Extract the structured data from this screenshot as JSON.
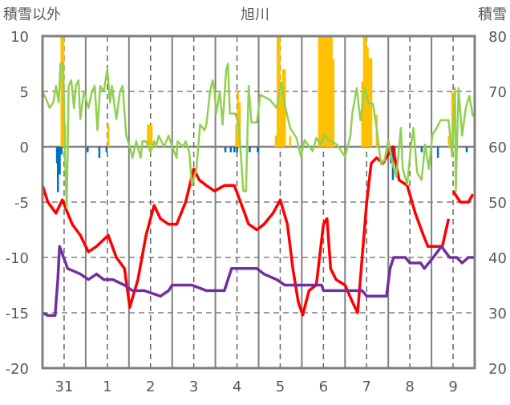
{
  "chart_data": {
    "type": "line",
    "title": "旭川",
    "ylabel_left": "積雪以外",
    "ylabel_right": "積雪",
    "ylim_left": [
      -20,
      10
    ],
    "ylim_right": [
      20,
      80
    ],
    "yticks_left": [
      "10",
      "5",
      "0",
      "-5",
      "-10",
      "-15",
      "-20"
    ],
    "yticks_right": [
      "80",
      "70",
      "60",
      "50",
      "40",
      "30",
      "20"
    ],
    "x_unit": "hours from start (10 days, hourly)",
    "xlim": [
      0,
      240
    ],
    "xtick_labels": [
      "31",
      "1",
      "2",
      "3",
      "4",
      "5",
      "6",
      "7",
      "8",
      "9"
    ],
    "grid": true,
    "colors": {
      "temp": "#ff0000",
      "green": "#92d050",
      "snow": "#7030a0",
      "bar_pos": "#ffc000",
      "bar_neg": "#0070c0",
      "axis": "#808080"
    },
    "series": [
      {
        "name": "red-line",
        "axis": "left",
        "points": [
          [
            0,
            -3.5
          ],
          [
            3,
            -5
          ],
          [
            7.5,
            -6
          ],
          [
            11,
            -4.8
          ],
          [
            14,
            -6
          ],
          [
            16.5,
            -7
          ],
          [
            21,
            -8
          ],
          [
            25.5,
            -9.5
          ],
          [
            30,
            -9
          ],
          [
            36.5,
            -8
          ],
          [
            41,
            -10
          ],
          [
            45.5,
            -11
          ],
          [
            48.5,
            -14.5
          ],
          [
            53,
            -12
          ],
          [
            57.5,
            -8
          ],
          [
            62,
            -5.3
          ],
          [
            65.5,
            -6.5
          ],
          [
            70,
            -7
          ],
          [
            74.5,
            -7
          ],
          [
            79.5,
            -5
          ],
          [
            84,
            -2
          ],
          [
            87,
            -3
          ],
          [
            91,
            -3.5
          ],
          [
            95.5,
            -4
          ],
          [
            101,
            -3.5
          ],
          [
            106.5,
            -3.5
          ],
          [
            110,
            -5
          ],
          [
            114.5,
            -7
          ],
          [
            119,
            -7.5
          ],
          [
            123,
            -7
          ],
          [
            128,
            -6
          ],
          [
            132,
            -4.8
          ],
          [
            136,
            -7
          ],
          [
            139,
            -11
          ],
          [
            142,
            -14
          ],
          [
            144.5,
            -15.2
          ],
          [
            148,
            -13
          ],
          [
            152,
            -12.5
          ],
          [
            156,
            -7
          ],
          [
            158,
            -6.5
          ],
          [
            160,
            -11
          ],
          [
            163,
            -12
          ],
          [
            168,
            -12.5
          ],
          [
            172,
            -14
          ],
          [
            175,
            -15
          ],
          [
            177.5,
            -10
          ],
          [
            180,
            -5
          ],
          [
            182.5,
            -1.5
          ],
          [
            185.5,
            -1
          ],
          [
            189,
            -1.5
          ],
          [
            194.5,
            0
          ],
          [
            198,
            -3
          ],
          [
            202.5,
            -3.5
          ],
          [
            207,
            -6
          ],
          [
            211.5,
            -8
          ],
          [
            214,
            -9
          ],
          [
            219,
            -9
          ],
          [
            222,
            -9
          ],
          [
            225.5,
            -6.5
          ],
          null,
          [
            228,
            -4
          ],
          [
            232,
            -5
          ],
          [
            236.5,
            -5
          ],
          [
            239,
            -4.3
          ]
        ]
      },
      {
        "name": "green-line",
        "axis": "left",
        "points": [
          [
            0,
            5
          ],
          [
            2,
            4.3
          ],
          [
            4,
            3.5
          ],
          [
            6,
            4
          ],
          [
            7.5,
            5.5
          ],
          [
            9,
            4
          ],
          [
            10,
            7.5
          ],
          [
            11.5,
            7.5
          ],
          [
            12.5,
            -1
          ],
          [
            13.5,
            -5.5
          ],
          [
            14.5,
            5.5
          ],
          [
            16,
            6
          ],
          [
            17.5,
            3.5
          ],
          [
            18.5,
            5.5
          ],
          [
            20,
            6
          ],
          [
            21,
            2.5
          ],
          [
            23,
            5
          ],
          [
            25.5,
            3.5
          ],
          [
            27.5,
            5
          ],
          [
            29,
            5.5
          ],
          [
            30.5,
            1.5
          ],
          [
            32,
            5.5
          ],
          [
            34,
            5
          ],
          [
            36,
            7
          ],
          [
            37.5,
            4
          ],
          [
            38.5,
            5.5
          ],
          [
            41,
            2.5
          ],
          [
            43,
            5
          ],
          [
            44.5,
            5.5
          ],
          [
            46.5,
            1
          ],
          [
            48.5,
            0
          ],
          [
            50,
            -1
          ],
          [
            52,
            0.5
          ],
          [
            54.5,
            -1
          ],
          [
            55.5,
            0.5
          ],
          [
            57.5,
            0.5
          ],
          [
            60,
            -0.5
          ],
          [
            62,
            0.5
          ],
          [
            63,
            0
          ],
          [
            64.5,
            1
          ],
          [
            67.5,
            0
          ],
          [
            70,
            1
          ],
          [
            72,
            0
          ],
          [
            74.5,
            -1
          ],
          [
            75,
            0.5
          ],
          [
            78,
            0
          ],
          [
            79.5,
            0.5
          ],
          [
            81.5,
            -0.5
          ],
          [
            83,
            -3.5
          ],
          [
            85.5,
            -2
          ],
          [
            87.5,
            2
          ],
          [
            90,
            1.5
          ],
          [
            91,
            2
          ],
          [
            93,
            5
          ],
          [
            94.5,
            6
          ],
          [
            95.5,
            5
          ],
          [
            96.5,
            3
          ],
          [
            98.5,
            5
          ],
          [
            100,
            2
          ],
          [
            102,
            7
          ],
          [
            103,
            7.5
          ],
          [
            104,
            3
          ],
          [
            107,
            3
          ],
          [
            109,
            2
          ],
          [
            111.5,
            -4
          ],
          [
            113,
            -4
          ],
          [
            114.5,
            5.5
          ],
          [
            116,
            2.2
          ],
          [
            119,
            2.2
          ],
          [
            121,
            4.7
          ],
          [
            126.5,
            4.2
          ],
          [
            130,
            3.5
          ],
          [
            132.5,
            5.8
          ],
          [
            134.5,
            3.8
          ],
          [
            137.5,
            1.7
          ],
          [
            141,
            0.8
          ],
          [
            143.5,
            -0.9
          ],
          [
            145.5,
            0.6
          ],
          [
            150,
            -0.4
          ],
          [
            152,
            0.8
          ],
          [
            154.5,
            0.2
          ],
          [
            156.5,
            1.1
          ],
          [
            159,
            0.6
          ],
          [
            163.5,
            0.2
          ],
          [
            168,
            -0.9
          ],
          [
            171,
            1
          ],
          [
            172,
            3
          ],
          [
            174.5,
            5.3
          ],
          [
            176.5,
            2.4
          ],
          [
            179,
            5.3
          ],
          [
            181,
            3.9
          ],
          [
            183.5,
            3.9
          ],
          [
            185.5,
            1.7
          ],
          [
            188,
            -1.6
          ],
          [
            190,
            -1.2
          ],
          [
            192,
            0.6
          ],
          [
            194.5,
            -1.6
          ],
          [
            196.5,
            -2.7
          ],
          [
            199,
            1.7
          ],
          [
            200,
            -2
          ],
          [
            202.5,
            -3.4
          ],
          [
            204.5,
            -0.1
          ],
          [
            206,
            1.7
          ],
          [
            208,
            -2.3
          ],
          [
            210.5,
            -3
          ],
          [
            212.5,
            0.2
          ],
          [
            214.5,
            -2
          ],
          [
            216.5,
            1.1
          ],
          [
            219,
            1.7
          ],
          [
            221,
            2.4
          ],
          [
            223.5,
            2.4
          ],
          [
            225.5,
            2.4
          ],
          [
            227.5,
            -0.9
          ],
          [
            229,
            5.3
          ],
          [
            229.5,
            -4
          ],
          [
            231,
            5.3
          ],
          [
            233,
            1
          ],
          [
            235,
            3.5
          ],
          [
            237,
            4.6
          ],
          [
            239,
            2.7
          ]
        ]
      },
      {
        "name": "snow-depth-line",
        "axis": "right",
        "points": [
          [
            0,
            30
          ],
          [
            3,
            29.5
          ],
          [
            7,
            29.5
          ],
          [
            8.5,
            36
          ],
          [
            9.5,
            42
          ],
          [
            14,
            38
          ],
          [
            21,
            37
          ],
          [
            25.5,
            36
          ],
          [
            30,
            37
          ],
          [
            34,
            36
          ],
          [
            39,
            36
          ],
          [
            45.5,
            35
          ],
          [
            50,
            34
          ],
          [
            56.5,
            34
          ],
          [
            65.5,
            33
          ],
          [
            70,
            34
          ],
          [
            72,
            35
          ],
          [
            83,
            35
          ],
          [
            91,
            34
          ],
          [
            101,
            34
          ],
          [
            105,
            38
          ],
          [
            110,
            38
          ],
          [
            119,
            38
          ],
          [
            123,
            37
          ],
          [
            130,
            36
          ],
          [
            134.5,
            35
          ],
          [
            155,
            35
          ],
          [
            156,
            34
          ],
          [
            177.5,
            34
          ],
          [
            180,
            33
          ],
          [
            191,
            33
          ],
          [
            193,
            38
          ],
          [
            195,
            40
          ],
          [
            201.5,
            40
          ],
          [
            204,
            39
          ],
          [
            210,
            39
          ],
          [
            212,
            38
          ],
          [
            217,
            40
          ],
          [
            221.5,
            42
          ],
          [
            226,
            40
          ],
          [
            230,
            40
          ],
          [
            233,
            39
          ],
          [
            236.5,
            40
          ],
          [
            240,
            40
          ]
        ]
      }
    ],
    "bars_positive": [
      [
        10,
        10
      ],
      [
        11,
        10
      ],
      [
        12,
        2
      ],
      [
        36,
        2
      ],
      [
        58,
        2
      ],
      [
        59,
        2
      ],
      [
        60,
        2
      ],
      [
        107,
        2
      ],
      [
        108,
        5
      ],
      [
        109,
        4
      ],
      [
        129,
        1
      ],
      [
        130,
        10
      ],
      [
        131,
        10
      ],
      [
        132,
        5
      ],
      [
        133,
        7
      ],
      [
        134,
        7
      ],
      [
        137,
        1
      ],
      [
        153,
        10
      ],
      [
        154,
        10
      ],
      [
        155,
        10
      ],
      [
        156,
        10
      ],
      [
        157,
        10
      ],
      [
        158,
        10
      ],
      [
        159,
        10
      ],
      [
        160,
        10
      ],
      [
        161,
        7.9
      ],
      [
        177,
        5.9
      ],
      [
        178,
        10
      ],
      [
        179,
        10
      ],
      [
        180,
        9
      ],
      [
        181,
        8
      ],
      [
        182,
        8
      ],
      [
        185,
        2.9
      ],
      [
        225,
        1
      ],
      [
        227,
        5
      ]
    ],
    "bars_negative": [
      [
        7.5,
        -1.5
      ],
      [
        8,
        -4.1
      ],
      [
        9,
        -2.5
      ],
      [
        10,
        -0.7
      ],
      [
        24.5,
        -0.5
      ],
      [
        31,
        -1
      ],
      [
        35,
        -0.5
      ],
      [
        101,
        -0.5
      ],
      [
        104,
        -0.5
      ],
      [
        106,
        -0.5
      ],
      [
        107.5,
        -0.5
      ],
      [
        114.5,
        -0.5
      ],
      [
        119,
        -0.5
      ],
      [
        193,
        -1.5
      ],
      [
        194,
        -3
      ],
      [
        195,
        -1
      ],
      [
        210,
        -0.5
      ],
      [
        219,
        -1
      ],
      [
        235,
        -0.5
      ]
    ]
  }
}
